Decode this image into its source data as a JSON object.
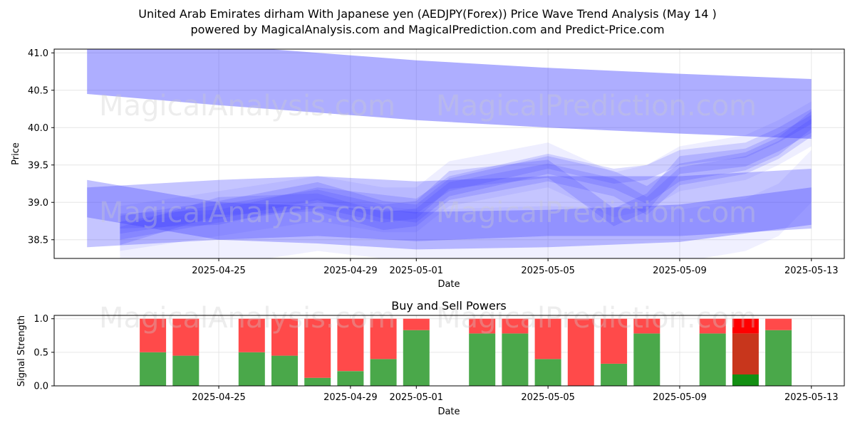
{
  "title_line1": "United Arab Emirates dirham With Japanese yen (AEDJPY(Forex)) Price Wave Trend Analysis (May 14 )",
  "title_line2": "powered by MagicalAnalysis.com and MagicalPrediction.com and Predict-Price.com",
  "watermarks": [
    "MagicalAnalysis.com",
    "MagicalPrediction.com"
  ],
  "colors": {
    "wave": "#3f3fff",
    "buy": "#4aa84a",
    "sell": "#ff4a4a",
    "buy_strong": "#138f13",
    "sell_strong": "#ff0000",
    "sell_dark": "#c8361c"
  },
  "chart_data": [
    {
      "type": "area",
      "xlabel": "Date",
      "ylabel": "Price",
      "xlim": [
        "2025-04-20",
        "2025-05-14"
      ],
      "ylim": [
        38.25,
        41.05
      ],
      "x_ticks": [
        "2025-04-25",
        "2025-04-29",
        "2025-05-01",
        "2025-05-05",
        "2025-05-09",
        "2025-05-13"
      ],
      "y_ticks": [
        38.5,
        39.0,
        39.5,
        40.0,
        40.5,
        41.0
      ],
      "grid": true,
      "bands": [
        {
          "x": [
            "2025-04-21",
            "2025-04-25",
            "2025-05-01",
            "2025-05-05",
            "2025-05-09",
            "2025-05-13"
          ],
          "center": [
            40.85,
            40.7,
            40.5,
            40.4,
            40.32,
            40.25
          ],
          "width": 0.4,
          "opacity": 0.42
        },
        {
          "x": [
            "2025-04-21",
            "2025-04-25",
            "2025-04-28",
            "2025-05-01",
            "2025-05-05",
            "2025-05-09",
            "2025-05-13"
          ],
          "center": [
            38.8,
            38.9,
            38.95,
            38.88,
            38.95,
            38.95,
            39.05
          ],
          "width": 0.4,
          "opacity": 0.3
        },
        {
          "x": [
            "2025-04-21",
            "2025-04-25",
            "2025-04-28",
            "2025-05-01",
            "2025-05-05",
            "2025-05-09",
            "2025-05-13"
          ],
          "center": [
            39.05,
            38.75,
            38.7,
            38.62,
            38.65,
            38.72,
            38.95
          ],
          "width": 0.25,
          "opacity": 0.32
        },
        {
          "x": [
            "2025-04-22",
            "2025-04-25",
            "2025-04-28",
            "2025-04-30",
            "2025-05-01",
            "2025-05-02",
            "2025-05-05",
            "2025-05-07",
            "2025-05-08",
            "2025-05-09",
            "2025-05-11",
            "2025-05-12",
            "2025-05-13"
          ],
          "center": [
            38.7,
            38.9,
            39.15,
            38.9,
            38.85,
            39.2,
            39.5,
            39.3,
            39.1,
            39.4,
            39.55,
            39.75,
            40.1
          ],
          "width": 0.12,
          "opacity": 0.2
        },
        {
          "x": [
            "2025-04-22",
            "2025-04-25",
            "2025-04-28",
            "2025-04-30",
            "2025-05-01",
            "2025-05-02",
            "2025-05-05",
            "2025-05-07",
            "2025-05-08",
            "2025-05-09",
            "2025-05-11",
            "2025-05-12",
            "2025-05-13"
          ],
          "center": [
            38.62,
            38.85,
            39.05,
            38.85,
            38.9,
            39.3,
            39.45,
            38.8,
            39.0,
            39.5,
            39.6,
            39.8,
            40.05
          ],
          "width": 0.12,
          "opacity": 0.2
        },
        {
          "x": [
            "2025-04-22",
            "2025-04-25",
            "2025-04-28",
            "2025-04-30",
            "2025-05-01",
            "2025-05-02",
            "2025-05-05",
            "2025-05-07",
            "2025-05-08",
            "2025-05-09",
            "2025-05-11",
            "2025-05-12",
            "2025-05-13"
          ],
          "center": [
            38.75,
            38.8,
            39.1,
            39.0,
            38.95,
            39.25,
            39.55,
            39.35,
            39.4,
            39.6,
            39.7,
            39.9,
            40.15
          ],
          "width": 0.1,
          "opacity": 0.18
        },
        {
          "x": [
            "2025-04-22",
            "2025-04-25",
            "2025-04-28",
            "2025-04-30",
            "2025-05-01",
            "2025-05-02",
            "2025-05-05",
            "2025-05-07",
            "2025-05-08",
            "2025-05-09",
            "2025-05-11",
            "2025-05-12",
            "2025-05-13"
          ],
          "center": [
            38.55,
            38.95,
            39.0,
            38.75,
            38.8,
            39.15,
            39.4,
            39.2,
            38.95,
            39.35,
            39.5,
            39.7,
            40.0
          ],
          "width": 0.12,
          "opacity": 0.18
        },
        {
          "x": [
            "2025-04-22",
            "2025-04-25",
            "2025-04-28",
            "2025-04-30",
            "2025-05-01",
            "2025-05-02",
            "2025-05-05",
            "2025-05-07",
            "2025-05-08",
            "2025-05-09",
            "2025-05-11",
            "2025-05-12",
            "2025-05-13"
          ],
          "center": [
            38.65,
            38.85,
            39.05,
            38.9,
            38.9,
            39.25,
            39.5,
            39.1,
            39.2,
            39.45,
            39.6,
            39.8,
            40.05
          ],
          "width": 0.3,
          "opacity": 0.09
        },
        {
          "x": [
            "2025-04-22",
            "2025-04-25",
            "2025-04-28",
            "2025-05-01",
            "2025-05-05",
            "2025-05-09",
            "2025-05-11",
            "2025-05-12",
            "2025-05-13"
          ],
          "center": [
            38.4,
            38.5,
            38.7,
            38.55,
            38.6,
            38.55,
            38.7,
            38.9,
            39.35
          ],
          "width": 0.35,
          "opacity": 0.08
        }
      ]
    },
    {
      "type": "bar",
      "title": "Buy and Sell Powers",
      "xlabel": "Date",
      "ylabel": "Signal Strength",
      "xlim": [
        "2025-04-20",
        "2025-05-14"
      ],
      "ylim": [
        0,
        1.05
      ],
      "x_ticks": [
        "2025-04-25",
        "2025-04-29",
        "2025-05-01",
        "2025-05-05",
        "2025-05-09",
        "2025-05-13"
      ],
      "y_ticks": [
        0.0,
        0.5,
        1.0
      ],
      "grid": true,
      "categories": [
        "2025-04-23",
        "2025-04-24",
        "2025-04-26",
        "2025-04-27",
        "2025-04-28",
        "2025-04-29",
        "2025-04-30",
        "2025-05-01",
        "2025-05-03",
        "2025-05-04",
        "2025-05-05",
        "2025-05-06",
        "2025-05-07",
        "2025-05-08",
        "2025-05-10",
        "2025-05-11",
        "2025-05-12"
      ],
      "series": [
        {
          "values": [
            0.5,
            0.45,
            0.5,
            0.45,
            0.12,
            0.22,
            0.4,
            0.83,
            0.78,
            0.78,
            0.4,
            0.0,
            0.33,
            0.78,
            0.78,
            0.17,
            0.83
          ]
        },
        {
          "values": [
            0.5,
            0.55,
            0.5,
            0.55,
            0.88,
            0.78,
            0.6,
            0.17,
            0.22,
            0.22,
            0.6,
            1.0,
            0.67,
            0.22,
            0.22,
            0.83,
            0.17
          ]
        }
      ],
      "special": {
        "date": "2025-05-11",
        "buy_strong": 0.17,
        "sell_dark": 0.61,
        "sell_strong": 0.22
      }
    }
  ]
}
